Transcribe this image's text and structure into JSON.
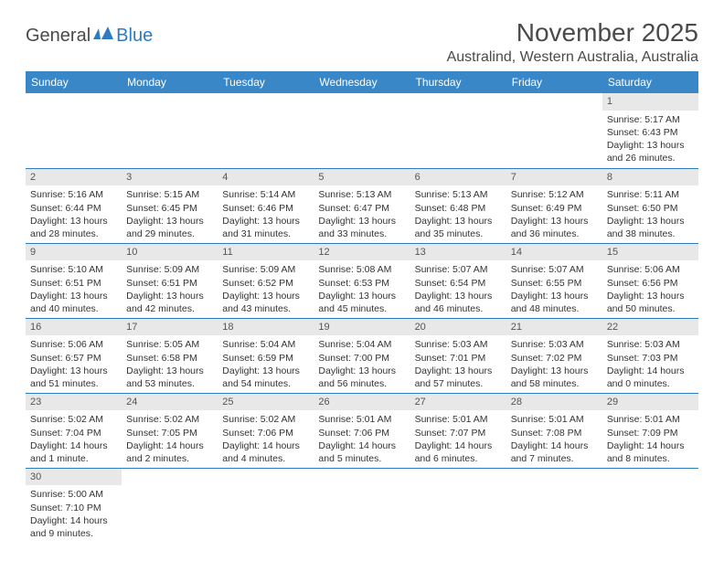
{
  "logo": {
    "part1": "General",
    "part2": "Blue"
  },
  "title": "November 2025",
  "location": "Australind, Western Australia, Australia",
  "colors": {
    "header_bg": "#3a87c8",
    "border": "#2d7cc1",
    "daynum_bg": "#e8e8e8",
    "text": "#333333"
  },
  "weekdays": [
    "Sunday",
    "Monday",
    "Tuesday",
    "Wednesday",
    "Thursday",
    "Friday",
    "Saturday"
  ],
  "weeks": [
    [
      null,
      null,
      null,
      null,
      null,
      null,
      {
        "n": "1",
        "sr": "Sunrise: 5:17 AM",
        "ss": "Sunset: 6:43 PM",
        "dl1": "Daylight: 13 hours",
        "dl2": "and 26 minutes."
      }
    ],
    [
      {
        "n": "2",
        "sr": "Sunrise: 5:16 AM",
        "ss": "Sunset: 6:44 PM",
        "dl1": "Daylight: 13 hours",
        "dl2": "and 28 minutes."
      },
      {
        "n": "3",
        "sr": "Sunrise: 5:15 AM",
        "ss": "Sunset: 6:45 PM",
        "dl1": "Daylight: 13 hours",
        "dl2": "and 29 minutes."
      },
      {
        "n": "4",
        "sr": "Sunrise: 5:14 AM",
        "ss": "Sunset: 6:46 PM",
        "dl1": "Daylight: 13 hours",
        "dl2": "and 31 minutes."
      },
      {
        "n": "5",
        "sr": "Sunrise: 5:13 AM",
        "ss": "Sunset: 6:47 PM",
        "dl1": "Daylight: 13 hours",
        "dl2": "and 33 minutes."
      },
      {
        "n": "6",
        "sr": "Sunrise: 5:13 AM",
        "ss": "Sunset: 6:48 PM",
        "dl1": "Daylight: 13 hours",
        "dl2": "and 35 minutes."
      },
      {
        "n": "7",
        "sr": "Sunrise: 5:12 AM",
        "ss": "Sunset: 6:49 PM",
        "dl1": "Daylight: 13 hours",
        "dl2": "and 36 minutes."
      },
      {
        "n": "8",
        "sr": "Sunrise: 5:11 AM",
        "ss": "Sunset: 6:50 PM",
        "dl1": "Daylight: 13 hours",
        "dl2": "and 38 minutes."
      }
    ],
    [
      {
        "n": "9",
        "sr": "Sunrise: 5:10 AM",
        "ss": "Sunset: 6:51 PM",
        "dl1": "Daylight: 13 hours",
        "dl2": "and 40 minutes."
      },
      {
        "n": "10",
        "sr": "Sunrise: 5:09 AM",
        "ss": "Sunset: 6:51 PM",
        "dl1": "Daylight: 13 hours",
        "dl2": "and 42 minutes."
      },
      {
        "n": "11",
        "sr": "Sunrise: 5:09 AM",
        "ss": "Sunset: 6:52 PM",
        "dl1": "Daylight: 13 hours",
        "dl2": "and 43 minutes."
      },
      {
        "n": "12",
        "sr": "Sunrise: 5:08 AM",
        "ss": "Sunset: 6:53 PM",
        "dl1": "Daylight: 13 hours",
        "dl2": "and 45 minutes."
      },
      {
        "n": "13",
        "sr": "Sunrise: 5:07 AM",
        "ss": "Sunset: 6:54 PM",
        "dl1": "Daylight: 13 hours",
        "dl2": "and 46 minutes."
      },
      {
        "n": "14",
        "sr": "Sunrise: 5:07 AM",
        "ss": "Sunset: 6:55 PM",
        "dl1": "Daylight: 13 hours",
        "dl2": "and 48 minutes."
      },
      {
        "n": "15",
        "sr": "Sunrise: 5:06 AM",
        "ss": "Sunset: 6:56 PM",
        "dl1": "Daylight: 13 hours",
        "dl2": "and 50 minutes."
      }
    ],
    [
      {
        "n": "16",
        "sr": "Sunrise: 5:06 AM",
        "ss": "Sunset: 6:57 PM",
        "dl1": "Daylight: 13 hours",
        "dl2": "and 51 minutes."
      },
      {
        "n": "17",
        "sr": "Sunrise: 5:05 AM",
        "ss": "Sunset: 6:58 PM",
        "dl1": "Daylight: 13 hours",
        "dl2": "and 53 minutes."
      },
      {
        "n": "18",
        "sr": "Sunrise: 5:04 AM",
        "ss": "Sunset: 6:59 PM",
        "dl1": "Daylight: 13 hours",
        "dl2": "and 54 minutes."
      },
      {
        "n": "19",
        "sr": "Sunrise: 5:04 AM",
        "ss": "Sunset: 7:00 PM",
        "dl1": "Daylight: 13 hours",
        "dl2": "and 56 minutes."
      },
      {
        "n": "20",
        "sr": "Sunrise: 5:03 AM",
        "ss": "Sunset: 7:01 PM",
        "dl1": "Daylight: 13 hours",
        "dl2": "and 57 minutes."
      },
      {
        "n": "21",
        "sr": "Sunrise: 5:03 AM",
        "ss": "Sunset: 7:02 PM",
        "dl1": "Daylight: 13 hours",
        "dl2": "and 58 minutes."
      },
      {
        "n": "22",
        "sr": "Sunrise: 5:03 AM",
        "ss": "Sunset: 7:03 PM",
        "dl1": "Daylight: 14 hours",
        "dl2": "and 0 minutes."
      }
    ],
    [
      {
        "n": "23",
        "sr": "Sunrise: 5:02 AM",
        "ss": "Sunset: 7:04 PM",
        "dl1": "Daylight: 14 hours",
        "dl2": "and 1 minute."
      },
      {
        "n": "24",
        "sr": "Sunrise: 5:02 AM",
        "ss": "Sunset: 7:05 PM",
        "dl1": "Daylight: 14 hours",
        "dl2": "and 2 minutes."
      },
      {
        "n": "25",
        "sr": "Sunrise: 5:02 AM",
        "ss": "Sunset: 7:06 PM",
        "dl1": "Daylight: 14 hours",
        "dl2": "and 4 minutes."
      },
      {
        "n": "26",
        "sr": "Sunrise: 5:01 AM",
        "ss": "Sunset: 7:06 PM",
        "dl1": "Daylight: 14 hours",
        "dl2": "and 5 minutes."
      },
      {
        "n": "27",
        "sr": "Sunrise: 5:01 AM",
        "ss": "Sunset: 7:07 PM",
        "dl1": "Daylight: 14 hours",
        "dl2": "and 6 minutes."
      },
      {
        "n": "28",
        "sr": "Sunrise: 5:01 AM",
        "ss": "Sunset: 7:08 PM",
        "dl1": "Daylight: 14 hours",
        "dl2": "and 7 minutes."
      },
      {
        "n": "29",
        "sr": "Sunrise: 5:01 AM",
        "ss": "Sunset: 7:09 PM",
        "dl1": "Daylight: 14 hours",
        "dl2": "and 8 minutes."
      }
    ],
    [
      {
        "n": "30",
        "sr": "Sunrise: 5:00 AM",
        "ss": "Sunset: 7:10 PM",
        "dl1": "Daylight: 14 hours",
        "dl2": "and 9 minutes."
      },
      null,
      null,
      null,
      null,
      null,
      null
    ]
  ]
}
